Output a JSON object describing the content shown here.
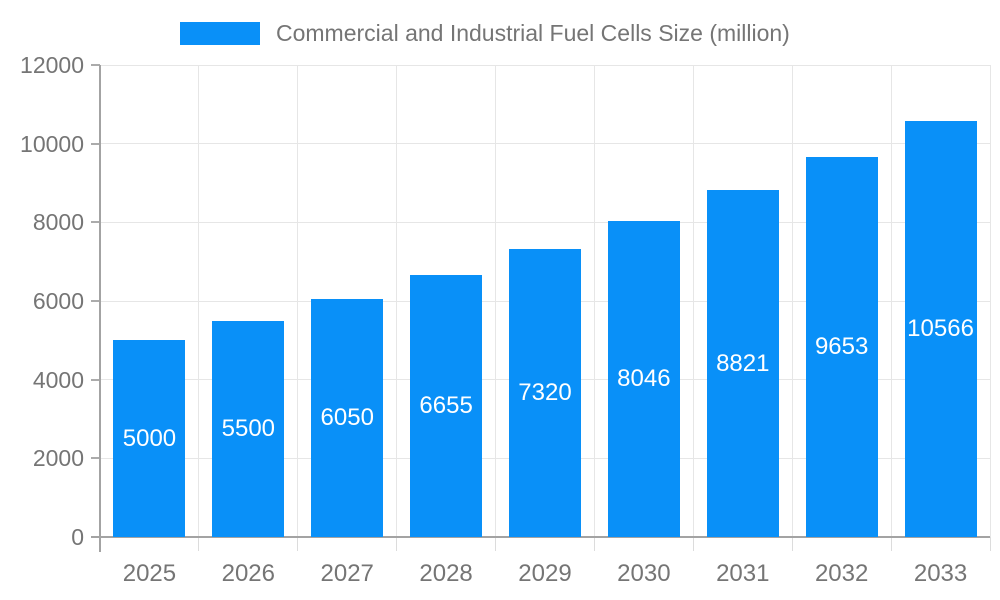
{
  "chart_data": {
    "type": "bar",
    "title": "Commercial and Industrial Fuel Cells Size (million)",
    "categories": [
      "2025",
      "2026",
      "2027",
      "2028",
      "2029",
      "2030",
      "2031",
      "2032",
      "2033"
    ],
    "values": [
      5000,
      5500,
      6050,
      6655,
      7320,
      8046,
      8821,
      9653,
      10566
    ],
    "value_labels": [
      "5000",
      "5500",
      "6050",
      "6655",
      "7320",
      "8046",
      "8821",
      "9653",
      "10566"
    ],
    "xlabel": "",
    "ylabel": "",
    "ylim": [
      0,
      12000
    ],
    "yticks": [
      0,
      2000,
      4000,
      6000,
      8000,
      10000,
      12000
    ],
    "grid": true,
    "legend_position": "top",
    "bar_color": "#0990f8",
    "value_label_color": "#ffffff",
    "tick_text_color": "#757575",
    "grid_color": "#e6e6e6",
    "axis_color": "#a3a3a3"
  }
}
